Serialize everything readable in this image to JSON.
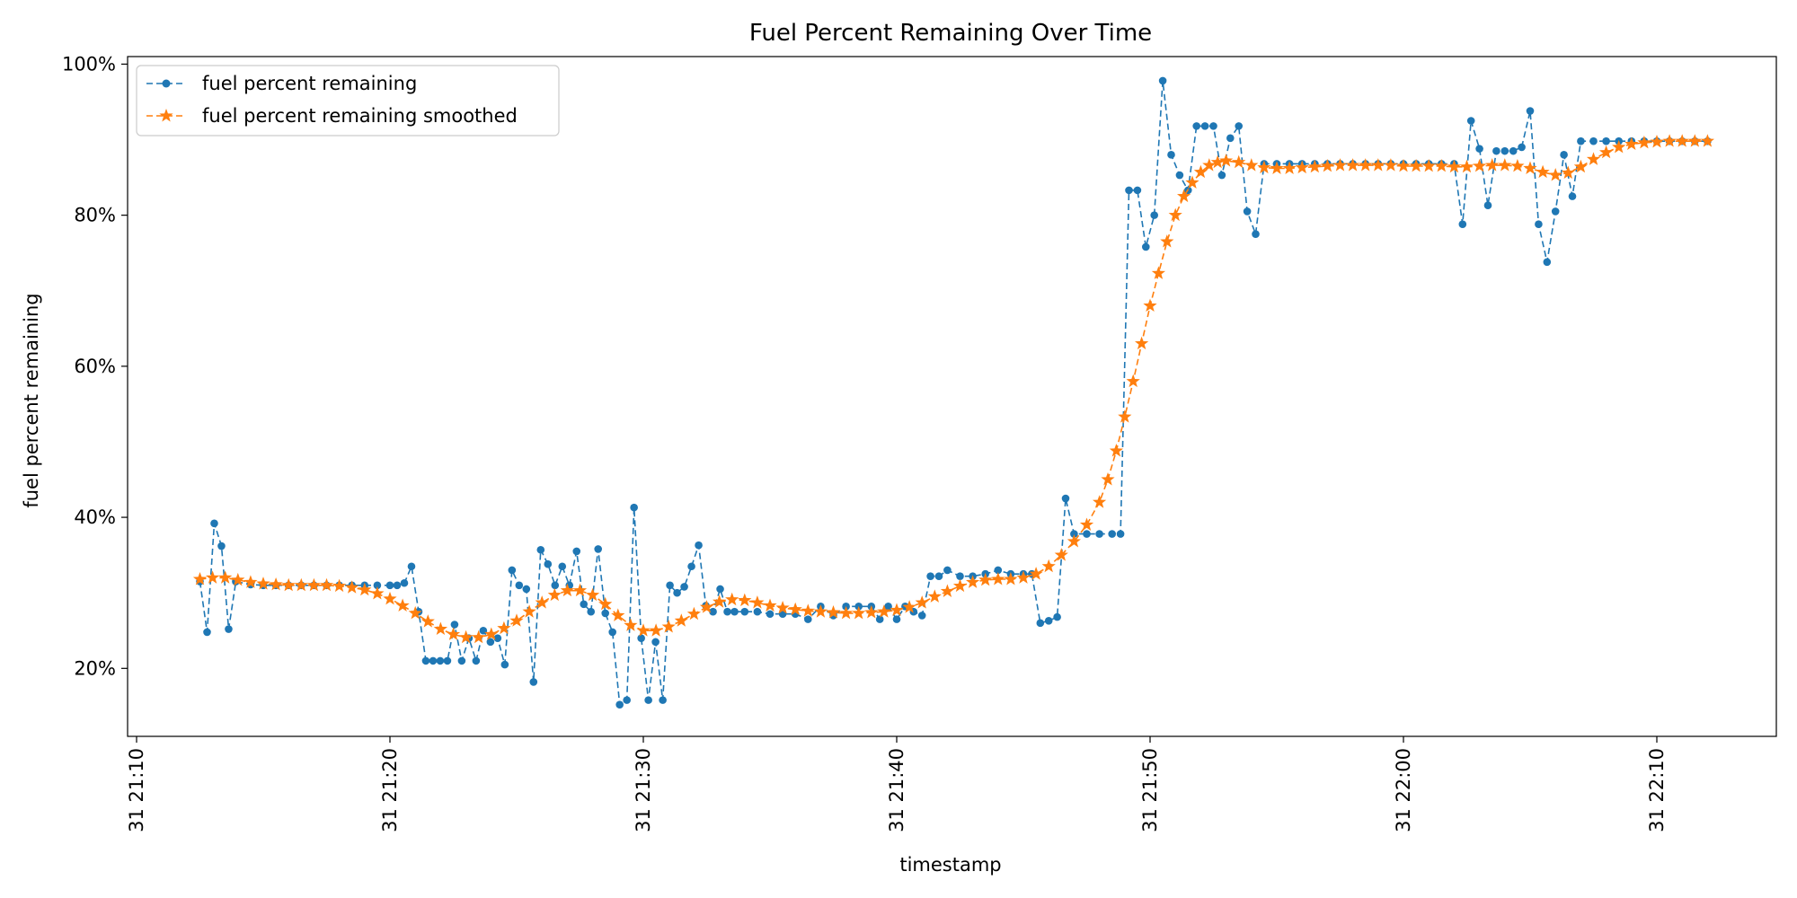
{
  "chart_data": {
    "type": "line",
    "title": "Fuel Percent Remaining Over Time",
    "xlabel": "timestamp",
    "ylabel": "fuel percent remaining",
    "x_tick_labels": [
      "31 21:10",
      "31 21:20",
      "31 21:30",
      "31 21:40",
      "31 21:50",
      "31 22:00",
      "31 22:10"
    ],
    "y_tick_labels": [
      "20%",
      "40%",
      "60%",
      "80%",
      "100%"
    ],
    "ylim": [
      0.11,
      1.01
    ],
    "y_ticks": [
      0.2,
      0.4,
      0.6,
      0.8,
      1.0
    ],
    "grid": false,
    "legend_position": "upper left",
    "series": [
      {
        "name": "fuel percent remaining",
        "color": "#1f77b4",
        "marker": "circle",
        "linestyle": "dashed",
        "points": [
          [
            "21:12:30",
            0.315
          ],
          [
            "21:12:47",
            0.248
          ],
          [
            "21:13:04",
            0.392
          ],
          [
            "21:13:21",
            0.362
          ],
          [
            "21:13:38",
            0.252
          ],
          [
            "21:13:55",
            0.315
          ],
          [
            "21:14:30",
            0.311
          ],
          [
            "21:15:00",
            0.31
          ],
          [
            "21:15:30",
            0.31
          ],
          [
            "21:16:00",
            0.31
          ],
          [
            "21:16:30",
            0.31
          ],
          [
            "21:17:00",
            0.31
          ],
          [
            "21:17:30",
            0.31
          ],
          [
            "21:18:00",
            0.31
          ],
          [
            "21:18:30",
            0.31
          ],
          [
            "21:19:00",
            0.31
          ],
          [
            "21:19:30",
            0.31
          ],
          [
            "21:20:00",
            0.31
          ],
          [
            "21:20:17",
            0.31
          ],
          [
            "21:20:34",
            0.313
          ],
          [
            "21:20:51",
            0.335
          ],
          [
            "21:21:08",
            0.275
          ],
          [
            "21:21:25",
            0.21
          ],
          [
            "21:21:42",
            0.21
          ],
          [
            "21:21:59",
            0.21
          ],
          [
            "21:22:16",
            0.21
          ],
          [
            "21:22:33",
            0.258
          ],
          [
            "21:22:50",
            0.21
          ],
          [
            "21:23:07",
            0.24
          ],
          [
            "21:23:24",
            0.21
          ],
          [
            "21:23:41",
            0.25
          ],
          [
            "21:23:58",
            0.235
          ],
          [
            "21:24:15",
            0.24
          ],
          [
            "21:24:32",
            0.205
          ],
          [
            "21:24:49",
            0.33
          ],
          [
            "21:25:06",
            0.31
          ],
          [
            "21:25:23",
            0.305
          ],
          [
            "21:25:40",
            0.182
          ],
          [
            "21:25:57",
            0.357
          ],
          [
            "21:26:14",
            0.338
          ],
          [
            "21:26:31",
            0.31
          ],
          [
            "21:26:48",
            0.335
          ],
          [
            "21:27:05",
            0.31
          ],
          [
            "21:27:22",
            0.355
          ],
          [
            "21:27:39",
            0.285
          ],
          [
            "21:27:56",
            0.275
          ],
          [
            "21:28:13",
            0.358
          ],
          [
            "21:28:30",
            0.273
          ],
          [
            "21:28:47",
            0.248
          ],
          [
            "21:29:04",
            0.152
          ],
          [
            "21:29:21",
            0.158
          ],
          [
            "21:29:38",
            0.413
          ],
          [
            "21:29:55",
            0.24
          ],
          [
            "21:30:12",
            0.158
          ],
          [
            "21:30:29",
            0.235
          ],
          [
            "21:30:46",
            0.158
          ],
          [
            "21:31:03",
            0.31
          ],
          [
            "21:31:20",
            0.3
          ],
          [
            "21:31:37",
            0.308
          ],
          [
            "21:31:54",
            0.335
          ],
          [
            "21:32:11",
            0.363
          ],
          [
            "21:32:28",
            0.283
          ],
          [
            "21:32:45",
            0.275
          ],
          [
            "21:33:02",
            0.305
          ],
          [
            "21:33:19",
            0.275
          ],
          [
            "21:33:36",
            0.275
          ],
          [
            "21:34:00",
            0.275
          ],
          [
            "21:34:30",
            0.275
          ],
          [
            "21:35:00",
            0.272
          ],
          [
            "21:35:30",
            0.272
          ],
          [
            "21:36:00",
            0.272
          ],
          [
            "21:36:30",
            0.265
          ],
          [
            "21:37:00",
            0.282
          ],
          [
            "21:37:30",
            0.27
          ],
          [
            "21:38:00",
            0.282
          ],
          [
            "21:38:30",
            0.282
          ],
          [
            "21:39:00",
            0.282
          ],
          [
            "21:39:20",
            0.265
          ],
          [
            "21:39:40",
            0.282
          ],
          [
            "21:40:00",
            0.265
          ],
          [
            "21:40:20",
            0.282
          ],
          [
            "21:40:40",
            0.275
          ],
          [
            "21:41:00",
            0.27
          ],
          [
            "21:41:20",
            0.322
          ],
          [
            "21:41:40",
            0.322
          ],
          [
            "21:42:00",
            0.33
          ],
          [
            "21:42:30",
            0.322
          ],
          [
            "21:43:00",
            0.322
          ],
          [
            "21:43:30",
            0.325
          ],
          [
            "21:44:00",
            0.33
          ],
          [
            "21:44:30",
            0.325
          ],
          [
            "21:45:00",
            0.325
          ],
          [
            "21:45:20",
            0.325
          ],
          [
            "21:45:40",
            0.26
          ],
          [
            "21:46:00",
            0.263
          ],
          [
            "21:46:20",
            0.268
          ],
          [
            "21:46:40",
            0.425
          ],
          [
            "21:47:00",
            0.378
          ],
          [
            "21:47:30",
            0.378
          ],
          [
            "21:48:00",
            0.378
          ],
          [
            "21:48:30",
            0.378
          ],
          [
            "21:48:50",
            0.378
          ],
          [
            "21:49:10",
            0.833
          ],
          [
            "21:49:30",
            0.833
          ],
          [
            "21:49:50",
            0.758
          ],
          [
            "21:50:10",
            0.8
          ],
          [
            "21:50:30",
            0.978
          ],
          [
            "21:50:50",
            0.88
          ],
          [
            "21:51:10",
            0.853
          ],
          [
            "21:51:30",
            0.833
          ],
          [
            "21:51:50",
            0.918
          ],
          [
            "21:52:10",
            0.918
          ],
          [
            "21:52:30",
            0.918
          ],
          [
            "21:52:50",
            0.853
          ],
          [
            "21:53:10",
            0.902
          ],
          [
            "21:53:30",
            0.918
          ],
          [
            "21:53:50",
            0.805
          ],
          [
            "21:54:10",
            0.775
          ],
          [
            "21:54:30",
            0.868
          ],
          [
            "21:55:00",
            0.868
          ],
          [
            "21:55:30",
            0.868
          ],
          [
            "21:56:00",
            0.868
          ],
          [
            "21:56:30",
            0.868
          ],
          [
            "21:57:00",
            0.868
          ],
          [
            "21:57:30",
            0.868
          ],
          [
            "21:58:00",
            0.868
          ],
          [
            "21:58:30",
            0.868
          ],
          [
            "21:59:00",
            0.868
          ],
          [
            "21:59:30",
            0.868
          ],
          [
            "22:00:00",
            0.868
          ],
          [
            "22:00:30",
            0.868
          ],
          [
            "22:01:00",
            0.868
          ],
          [
            "22:01:30",
            0.868
          ],
          [
            "22:02:00",
            0.868
          ],
          [
            "22:02:20",
            0.788
          ],
          [
            "22:02:40",
            0.925
          ],
          [
            "22:03:00",
            0.888
          ],
          [
            "22:03:20",
            0.813
          ],
          [
            "22:03:40",
            0.885
          ],
          [
            "22:04:00",
            0.885
          ],
          [
            "22:04:20",
            0.885
          ],
          [
            "22:04:40",
            0.89
          ],
          [
            "22:05:00",
            0.938
          ],
          [
            "22:05:20",
            0.788
          ],
          [
            "22:05:40",
            0.738
          ],
          [
            "22:06:00",
            0.805
          ],
          [
            "22:06:20",
            0.88
          ],
          [
            "22:06:40",
            0.825
          ],
          [
            "22:07:00",
            0.898
          ],
          [
            "22:07:30",
            0.898
          ],
          [
            "22:08:00",
            0.898
          ],
          [
            "22:08:30",
            0.898
          ],
          [
            "22:09:00",
            0.898
          ],
          [
            "22:09:30",
            0.898
          ],
          [
            "22:10:00",
            0.898
          ],
          [
            "22:10:30",
            0.898
          ],
          [
            "22:11:00",
            0.898
          ],
          [
            "22:11:30",
            0.898
          ],
          [
            "22:12:00",
            0.898
          ]
        ]
      },
      {
        "name": "fuel percent remaining smoothed",
        "color": "#ff7f0e",
        "marker": "star",
        "linestyle": "dashed",
        "points": [
          [
            "21:12:30",
            0.318
          ],
          [
            "21:13:00",
            0.32
          ],
          [
            "21:13:30",
            0.32
          ],
          [
            "21:14:00",
            0.317
          ],
          [
            "21:14:30",
            0.314
          ],
          [
            "21:15:00",
            0.312
          ],
          [
            "21:15:30",
            0.311
          ],
          [
            "21:16:00",
            0.31
          ],
          [
            "21:16:30",
            0.31
          ],
          [
            "21:17:00",
            0.31
          ],
          [
            "21:17:30",
            0.31
          ],
          [
            "21:18:00",
            0.309
          ],
          [
            "21:18:30",
            0.307
          ],
          [
            "21:19:00",
            0.304
          ],
          [
            "21:19:30",
            0.299
          ],
          [
            "21:20:00",
            0.292
          ],
          [
            "21:20:30",
            0.283
          ],
          [
            "21:21:00",
            0.273
          ],
          [
            "21:21:30",
            0.262
          ],
          [
            "21:22:00",
            0.252
          ],
          [
            "21:22:30",
            0.245
          ],
          [
            "21:23:00",
            0.241
          ],
          [
            "21:23:30",
            0.241
          ],
          [
            "21:24:00",
            0.245
          ],
          [
            "21:24:30",
            0.253
          ],
          [
            "21:25:00",
            0.263
          ],
          [
            "21:25:30",
            0.275
          ],
          [
            "21:26:00",
            0.287
          ],
          [
            "21:26:30",
            0.297
          ],
          [
            "21:27:00",
            0.303
          ],
          [
            "21:27:30",
            0.303
          ],
          [
            "21:28:00",
            0.297
          ],
          [
            "21:28:30",
            0.285
          ],
          [
            "21:29:00",
            0.27
          ],
          [
            "21:29:30",
            0.257
          ],
          [
            "21:30:00",
            0.25
          ],
          [
            "21:30:30",
            0.25
          ],
          [
            "21:31:00",
            0.255
          ],
          [
            "21:31:30",
            0.263
          ],
          [
            "21:32:00",
            0.272
          ],
          [
            "21:32:30",
            0.281
          ],
          [
            "21:33:00",
            0.288
          ],
          [
            "21:33:30",
            0.291
          ],
          [
            "21:34:00",
            0.29
          ],
          [
            "21:34:30",
            0.287
          ],
          [
            "21:35:00",
            0.283
          ],
          [
            "21:35:30",
            0.28
          ],
          [
            "21:36:00",
            0.278
          ],
          [
            "21:36:30",
            0.276
          ],
          [
            "21:37:00",
            0.275
          ],
          [
            "21:37:30",
            0.274
          ],
          [
            "21:38:00",
            0.273
          ],
          [
            "21:38:30",
            0.273
          ],
          [
            "21:39:00",
            0.274
          ],
          [
            "21:39:30",
            0.275
          ],
          [
            "21:40:00",
            0.277
          ],
          [
            "21:40:30",
            0.281
          ],
          [
            "21:41:00",
            0.287
          ],
          [
            "21:41:30",
            0.295
          ],
          [
            "21:42:00",
            0.302
          ],
          [
            "21:42:30",
            0.309
          ],
          [
            "21:43:00",
            0.314
          ],
          [
            "21:43:30",
            0.317
          ],
          [
            "21:44:00",
            0.318
          ],
          [
            "21:44:30",
            0.318
          ],
          [
            "21:45:00",
            0.32
          ],
          [
            "21:45:30",
            0.325
          ],
          [
            "21:46:00",
            0.335
          ],
          [
            "21:46:30",
            0.35
          ],
          [
            "21:47:00",
            0.368
          ],
          [
            "21:47:30",
            0.39
          ],
          [
            "21:48:00",
            0.42
          ],
          [
            "21:48:20",
            0.45
          ],
          [
            "21:48:40",
            0.488
          ],
          [
            "21:49:00",
            0.533
          ],
          [
            "21:49:20",
            0.58
          ],
          [
            "21:49:40",
            0.63
          ],
          [
            "21:50:00",
            0.68
          ],
          [
            "21:50:20",
            0.723
          ],
          [
            "21:50:40",
            0.765
          ],
          [
            "21:51:00",
            0.8
          ],
          [
            "21:51:20",
            0.825
          ],
          [
            "21:51:40",
            0.843
          ],
          [
            "21:52:00",
            0.857
          ],
          [
            "21:52:20",
            0.866
          ],
          [
            "21:52:40",
            0.87
          ],
          [
            "21:53:00",
            0.872
          ],
          [
            "21:53:30",
            0.87
          ],
          [
            "21:54:00",
            0.866
          ],
          [
            "21:54:30",
            0.863
          ],
          [
            "21:55:00",
            0.862
          ],
          [
            "21:55:30",
            0.862
          ],
          [
            "21:56:00",
            0.863
          ],
          [
            "21:56:30",
            0.864
          ],
          [
            "21:57:00",
            0.865
          ],
          [
            "21:57:30",
            0.866
          ],
          [
            "21:58:00",
            0.866
          ],
          [
            "21:58:30",
            0.866
          ],
          [
            "21:59:00",
            0.866
          ],
          [
            "21:59:30",
            0.866
          ],
          [
            "22:00:00",
            0.865
          ],
          [
            "22:00:30",
            0.865
          ],
          [
            "22:01:00",
            0.865
          ],
          [
            "22:01:30",
            0.865
          ],
          [
            "22:02:00",
            0.864
          ],
          [
            "22:02:30",
            0.864
          ],
          [
            "22:03:00",
            0.865
          ],
          [
            "22:03:30",
            0.866
          ],
          [
            "22:04:00",
            0.866
          ],
          [
            "22:04:30",
            0.865
          ],
          [
            "22:05:00",
            0.862
          ],
          [
            "22:05:30",
            0.857
          ],
          [
            "22:06:00",
            0.853
          ],
          [
            "22:06:30",
            0.856
          ],
          [
            "22:07:00",
            0.864
          ],
          [
            "22:07:30",
            0.874
          ],
          [
            "22:08:00",
            0.883
          ],
          [
            "22:08:30",
            0.89
          ],
          [
            "22:09:00",
            0.894
          ],
          [
            "22:09:30",
            0.896
          ],
          [
            "22:10:00",
            0.897
          ],
          [
            "22:10:30",
            0.898
          ],
          [
            "22:11:00",
            0.898
          ],
          [
            "22:11:30",
            0.898
          ],
          [
            "22:12:00",
            0.898
          ]
        ]
      }
    ]
  }
}
